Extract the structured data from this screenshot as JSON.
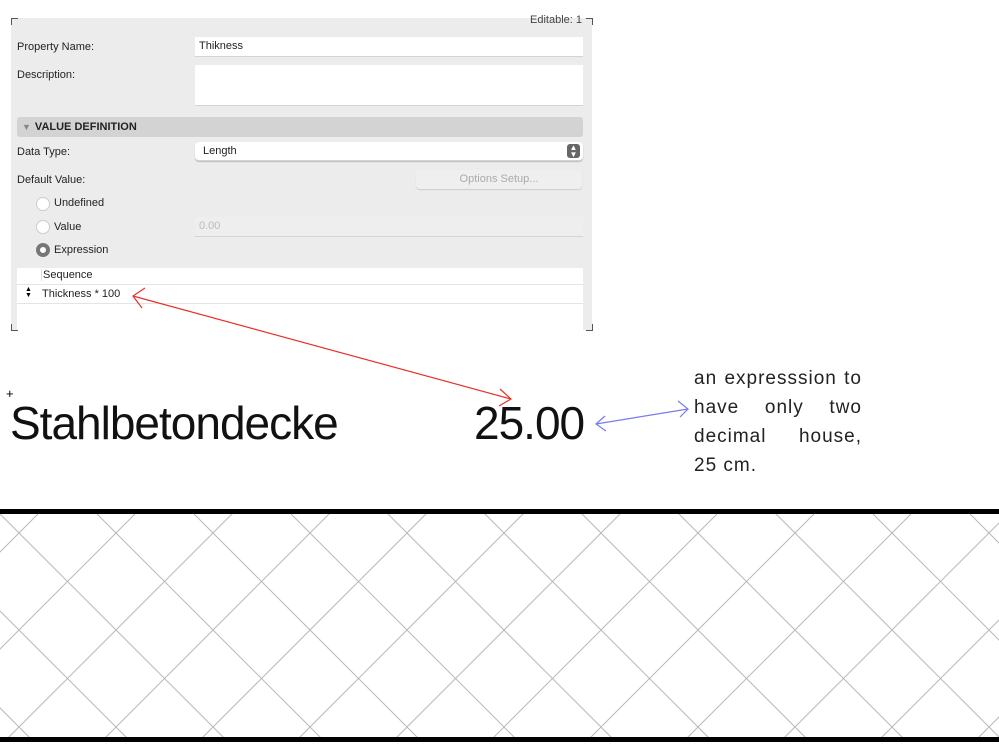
{
  "dialog": {
    "editable_label": "Editable: 1",
    "property_name_label": "Property Name:",
    "property_name_value": "Thikness",
    "description_label": "Description:",
    "description_value": "",
    "section_title": "VALUE DEFINITION",
    "data_type_label": "Data Type:",
    "data_type_value": "Length",
    "default_value_label": "Default Value:",
    "options_setup_label": "Options Setup...",
    "radio_undefined": "Undefined",
    "radio_value": "Value",
    "radio_expression": "Expression",
    "selected_radio": "Expression",
    "value_placeholder": "0.00",
    "table_header": "Sequence",
    "expression_row": "Thickness * 100"
  },
  "label_preview": {
    "name": "Stahlbetondecke",
    "value": "25.00"
  },
  "annotation": {
    "text": "an expresssion to have only two decimal house, 25 cm."
  },
  "colors": {
    "red_arrow": "#e8312a",
    "blue_arrow": "#7a7aee",
    "hatch": "#b8b8b8"
  }
}
